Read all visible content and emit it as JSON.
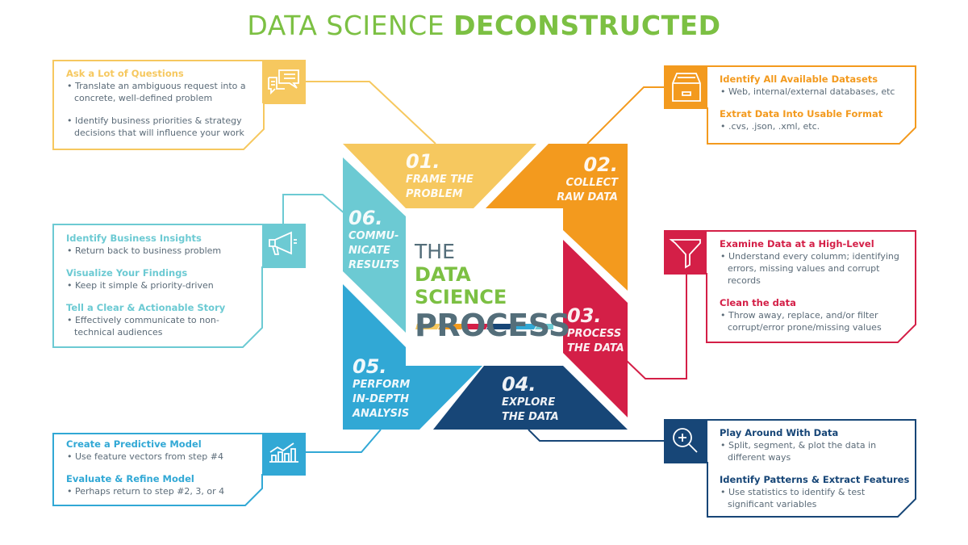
{
  "title": {
    "light": "DATA SCIENCE ",
    "bold": "DECONSTRUCTED"
  },
  "center": {
    "line1": "THE",
    "line2": "DATA SCIENCE",
    "line3": "PROCESS"
  },
  "colors": {
    "step1": "#f6c85f",
    "step2": "#f39a1e",
    "step3": "#d41f47",
    "step4": "#174677",
    "step5": "#31a8d5",
    "step6": "#6ccad3",
    "title_green": "#7cc043",
    "slate": "#546e7a"
  },
  "steps": [
    {
      "num": "01.",
      "label": "FRAME THE PROBLEM",
      "lines": [
        "FRAME THE",
        "PROBLEM"
      ]
    },
    {
      "num": "02.",
      "lines": [
        "COLLECT",
        "RAW DATA"
      ]
    },
    {
      "num": "03.",
      "lines": [
        "PROCESS",
        "THE DATA"
      ]
    },
    {
      "num": "04.",
      "lines": [
        "EXPLORE",
        "THE DATA"
      ]
    },
    {
      "num": "05.",
      "lines": [
        "PERFORM",
        "IN-DEPTH",
        "ANALYSIS"
      ]
    },
    {
      "num": "06.",
      "lines": [
        "COMMU-",
        "NICATE",
        "RESULTS"
      ]
    }
  ],
  "boxes": {
    "frame": {
      "icon": "chat-bubbles-icon",
      "sections": [
        {
          "heading": "Ask a Lot of Questions",
          "bullets": [
            "• Translate an ambiguous request into a concrete, well-defined problem",
            "• Identify business priorities & strategy decisions that will influence your work"
          ]
        }
      ]
    },
    "collect": {
      "icon": "archive-drawer-icon",
      "sections": [
        {
          "heading": "Identify All Available Datasets",
          "bullets": [
            "• Web, internal/external databases, etc"
          ]
        },
        {
          "heading": "Extrat Data Into Usable Format",
          "bullets": [
            "• .cvs, .json, .xml, etc."
          ]
        }
      ]
    },
    "process": {
      "icon": "funnel-icon",
      "sections": [
        {
          "heading": "Examine Data at a High-Level",
          "bullets": [
            "• Understand every columm; identifying errors, missing values and corrupt records"
          ]
        },
        {
          "heading": "Clean the data",
          "bullets": [
            "• Throw away, replace, and/or filter corrupt/error prone/missing values"
          ]
        }
      ]
    },
    "explore": {
      "icon": "magnifier-plus-icon",
      "sections": [
        {
          "heading": "Play Around With Data",
          "bullets": [
            "• Split, segment, & plot the data in different ways"
          ]
        },
        {
          "heading": "Identify Patterns & Extract Features",
          "bullets": [
            "• Use statistics to identify & test significant variables"
          ]
        }
      ]
    },
    "analysis": {
      "icon": "bar-chart-icon",
      "sections": [
        {
          "heading": "Create a Predictive Model",
          "bullets": [
            "• Use feature vectors from step #4"
          ]
        },
        {
          "heading": "Evaluate & Refine Model",
          "bullets": [
            "• Perhaps return to step #2, 3, or 4"
          ]
        }
      ]
    },
    "communicate": {
      "icon": "megaphone-icon",
      "sections": [
        {
          "heading": "Identify Business Insights",
          "bullets": [
            "• Return back to business problem"
          ]
        },
        {
          "heading": "Visualize Your Findings",
          "bullets": [
            "• Keep it simple & priority-driven"
          ]
        },
        {
          "heading": "Tell a Clear & Actionable Story",
          "bullets": [
            "• Effectively communicate to non-technical audiences"
          ]
        }
      ]
    }
  }
}
